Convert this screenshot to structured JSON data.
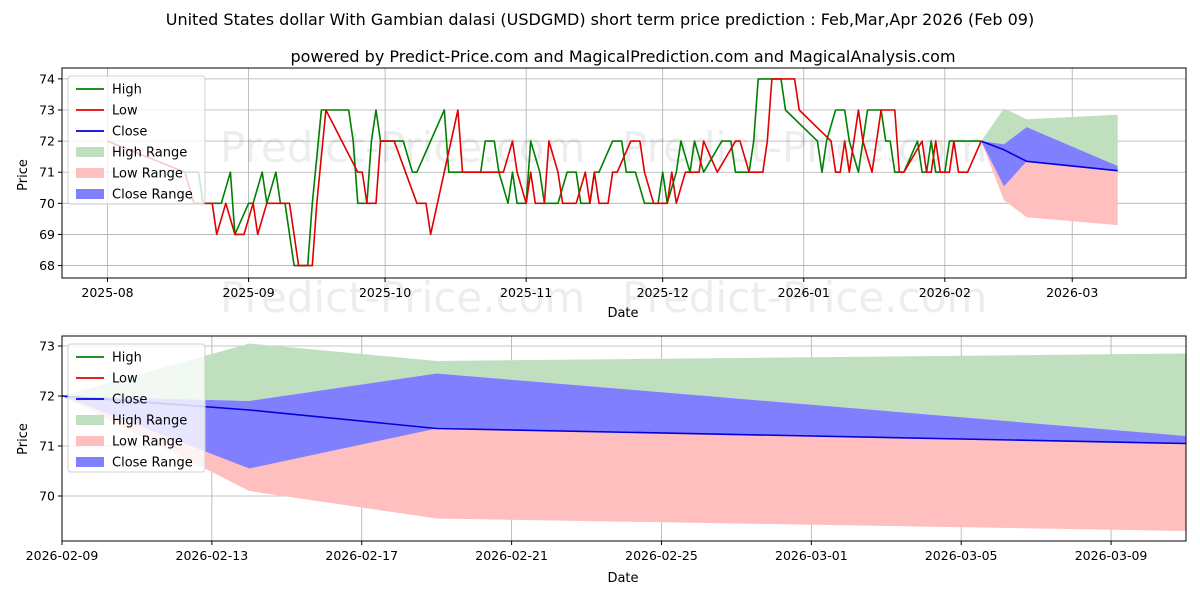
{
  "title": "United States dollar With Gambian dalasi (USDGMD) short term price prediction : Feb,Mar,Apr 2026 (Feb 09)",
  "subtitle": "powered by Predict-Price.com and MagicalPrediction.com and MagicalAnalysis.com",
  "watermark": "Predict-Price.com",
  "colors": {
    "high": "#008000",
    "low": "#e00000",
    "close": "#0000e0",
    "high_range": "#bfdfbf",
    "low_range": "#ffbfbf",
    "close_range": "#8080ff",
    "grid": "#b0b0b0"
  },
  "legend": {
    "items": [
      {
        "key": "high",
        "label": "High"
      },
      {
        "key": "low",
        "label": "Low"
      },
      {
        "key": "close",
        "label": "Close"
      },
      {
        "key": "high_range",
        "label": "High Range"
      },
      {
        "key": "low_range",
        "label": "Low Range"
      },
      {
        "key": "close_range",
        "label": "Close Range"
      }
    ]
  },
  "chart_data": [
    {
      "type": "line",
      "name": "history-and-forecast",
      "xlabel": "Date",
      "ylabel": "Price",
      "xlim": [
        "2025-07-22",
        "2026-03-26"
      ],
      "ylim": [
        67.6,
        74.35
      ],
      "yticks": [
        68,
        69,
        70,
        71,
        72,
        73,
        74
      ],
      "xticks": [
        {
          "date": "2025-08-01",
          "label": "2025-08"
        },
        {
          "date": "2025-09-01",
          "label": "2025-09"
        },
        {
          "date": "2025-10-01",
          "label": "2025-10"
        },
        {
          "date": "2025-11-01",
          "label": "2025-11"
        },
        {
          "date": "2025-12-01",
          "label": "2025-12"
        },
        {
          "date": "2026-01-01",
          "label": "2026-01"
        },
        {
          "date": "2026-02-01",
          "label": "2026-02"
        },
        {
          "date": "2026-03-01",
          "label": "2026-03"
        }
      ],
      "high_series": [
        [
          "2025-08-01",
          72
        ],
        [
          "2025-08-18",
          71
        ],
        [
          "2025-08-20",
          71
        ],
        [
          "2025-08-21",
          71
        ],
        [
          "2025-08-22",
          70
        ],
        [
          "2025-08-25",
          70
        ],
        [
          "2025-08-26",
          70
        ],
        [
          "2025-08-28",
          71
        ],
        [
          "2025-08-29",
          69
        ],
        [
          "2025-09-01",
          70
        ],
        [
          "2025-09-02",
          70
        ],
        [
          "2025-09-04",
          71
        ],
        [
          "2025-09-05",
          70
        ],
        [
          "2025-09-07",
          71
        ],
        [
          "2025-09-08",
          70
        ],
        [
          "2025-09-09",
          70
        ],
        [
          "2025-09-11",
          68
        ],
        [
          "2025-09-14",
          68
        ],
        [
          "2025-09-15",
          70
        ],
        [
          "2025-09-17",
          73
        ],
        [
          "2025-09-23",
          73
        ],
        [
          "2025-09-24",
          72
        ],
        [
          "2025-09-25",
          70
        ],
        [
          "2025-09-27",
          70
        ],
        [
          "2025-09-28",
          72
        ],
        [
          "2025-09-29",
          73
        ],
        [
          "2025-09-30",
          72
        ],
        [
          "2025-10-05",
          72
        ],
        [
          "2025-10-07",
          71
        ],
        [
          "2025-10-08",
          71
        ],
        [
          "2025-10-14",
          73
        ],
        [
          "2025-10-15",
          71
        ],
        [
          "2025-10-22",
          71
        ],
        [
          "2025-10-23",
          72
        ],
        [
          "2025-10-25",
          72
        ],
        [
          "2025-10-26",
          71
        ],
        [
          "2025-10-28",
          70
        ],
        [
          "2025-10-29",
          71
        ],
        [
          "2025-10-30",
          70
        ],
        [
          "2025-11-01",
          70
        ],
        [
          "2025-11-02",
          72
        ],
        [
          "2025-11-04",
          71
        ],
        [
          "2025-11-05",
          70
        ],
        [
          "2025-11-08",
          70
        ],
        [
          "2025-11-10",
          71
        ],
        [
          "2025-11-12",
          71
        ],
        [
          "2025-11-13",
          70
        ],
        [
          "2025-11-15",
          70
        ],
        [
          "2025-11-16",
          71
        ],
        [
          "2025-11-17",
          71
        ],
        [
          "2025-11-20",
          72
        ],
        [
          "2025-11-22",
          72
        ],
        [
          "2025-11-23",
          71
        ],
        [
          "2025-11-25",
          71
        ],
        [
          "2025-11-27",
          70
        ],
        [
          "2025-11-30",
          70
        ],
        [
          "2025-12-01",
          71
        ],
        [
          "2025-12-02",
          70
        ],
        [
          "2025-12-04",
          71
        ],
        [
          "2025-12-05",
          72
        ],
        [
          "2025-12-07",
          71
        ],
        [
          "2025-12-08",
          72
        ],
        [
          "2025-12-10",
          71
        ],
        [
          "2025-12-14",
          72
        ],
        [
          "2025-12-16",
          72
        ],
        [
          "2025-12-17",
          71
        ],
        [
          "2025-12-20",
          71
        ],
        [
          "2025-12-21",
          72
        ],
        [
          "2025-12-22",
          74
        ],
        [
          "2025-12-27",
          74
        ],
        [
          "2025-12-28",
          73
        ],
        [
          "2026-01-04",
          72
        ],
        [
          "2026-01-05",
          71
        ],
        [
          "2026-01-06",
          72
        ],
        [
          "2026-01-08",
          73
        ],
        [
          "2026-01-10",
          73
        ],
        [
          "2026-01-11",
          72
        ],
        [
          "2026-01-13",
          71
        ],
        [
          "2026-01-15",
          73
        ],
        [
          "2026-01-18",
          73
        ],
        [
          "2026-01-19",
          72
        ],
        [
          "2026-01-20",
          72
        ],
        [
          "2026-01-21",
          71
        ],
        [
          "2026-01-23",
          71
        ],
        [
          "2026-01-26",
          72
        ],
        [
          "2026-01-27",
          71
        ],
        [
          "2026-01-28",
          71
        ],
        [
          "2026-01-29",
          72
        ],
        [
          "2026-01-30",
          71
        ],
        [
          "2026-02-01",
          71
        ],
        [
          "2026-02-02",
          72
        ],
        [
          "2026-02-09",
          72
        ]
      ],
      "low_series": [
        [
          "2025-08-01",
          72
        ],
        [
          "2025-08-18",
          71
        ],
        [
          "2025-08-20",
          70
        ],
        [
          "2025-08-22",
          70
        ],
        [
          "2025-08-24",
          70
        ],
        [
          "2025-08-25",
          69
        ],
        [
          "2025-08-27",
          70
        ],
        [
          "2025-08-29",
          69
        ],
        [
          "2025-08-31",
          69
        ],
        [
          "2025-09-02",
          70
        ],
        [
          "2025-09-03",
          69
        ],
        [
          "2025-09-05",
          70
        ],
        [
          "2025-09-08",
          70
        ],
        [
          "2025-09-10",
          70
        ],
        [
          "2025-09-12",
          68
        ],
        [
          "2025-09-15",
          68
        ],
        [
          "2025-09-16",
          70
        ],
        [
          "2025-09-18",
          73
        ],
        [
          "2025-09-25",
          71
        ],
        [
          "2025-09-26",
          71
        ],
        [
          "2025-09-27",
          70
        ],
        [
          "2025-09-29",
          70
        ],
        [
          "2025-09-30",
          72
        ],
        [
          "2025-10-03",
          72
        ],
        [
          "2025-10-08",
          70
        ],
        [
          "2025-10-10",
          70
        ],
        [
          "2025-10-11",
          69
        ],
        [
          "2025-10-17",
          73
        ],
        [
          "2025-10-18",
          71
        ],
        [
          "2025-10-27",
          71
        ],
        [
          "2025-10-29",
          72
        ],
        [
          "2025-10-30",
          71
        ],
        [
          "2025-11-01",
          70
        ],
        [
          "2025-11-02",
          71
        ],
        [
          "2025-11-03",
          70
        ],
        [
          "2025-11-05",
          70
        ],
        [
          "2025-11-06",
          72
        ],
        [
          "2025-11-08",
          71
        ],
        [
          "2025-11-09",
          70
        ],
        [
          "2025-11-12",
          70
        ],
        [
          "2025-11-14",
          71
        ],
        [
          "2025-11-15",
          70
        ],
        [
          "2025-11-16",
          71
        ],
        [
          "2025-11-17",
          70
        ],
        [
          "2025-11-19",
          70
        ],
        [
          "2025-11-20",
          71
        ],
        [
          "2025-11-21",
          71
        ],
        [
          "2025-11-24",
          72
        ],
        [
          "2025-11-26",
          72
        ],
        [
          "2025-11-27",
          71
        ],
        [
          "2025-11-29",
          70
        ],
        [
          "2025-12-02",
          70
        ],
        [
          "2025-12-03",
          71
        ],
        [
          "2025-12-04",
          70
        ],
        [
          "2025-12-06",
          71
        ],
        [
          "2025-12-09",
          71
        ],
        [
          "2025-12-10",
          72
        ],
        [
          "2025-12-13",
          71
        ],
        [
          "2025-12-17",
          72
        ],
        [
          "2025-12-18",
          72
        ],
        [
          "2025-12-20",
          71
        ],
        [
          "2025-12-23",
          71
        ],
        [
          "2025-12-24",
          72
        ],
        [
          "2025-12-25",
          74
        ],
        [
          "2025-12-30",
          74
        ],
        [
          "2025-12-31",
          73
        ],
        [
          "2026-01-07",
          72
        ],
        [
          "2026-01-08",
          71
        ],
        [
          "2026-01-09",
          71
        ],
        [
          "2026-01-10",
          72
        ],
        [
          "2026-01-11",
          71
        ],
        [
          "2026-01-13",
          73
        ],
        [
          "2026-01-14",
          72
        ],
        [
          "2026-01-16",
          71
        ],
        [
          "2026-01-18",
          73
        ],
        [
          "2026-01-21",
          73
        ],
        [
          "2026-01-22",
          71
        ],
        [
          "2026-01-23",
          71
        ],
        [
          "2026-01-27",
          72
        ],
        [
          "2026-01-28",
          71
        ],
        [
          "2026-01-29",
          71
        ],
        [
          "2026-01-30",
          72
        ],
        [
          "2026-01-31",
          71
        ],
        [
          "2026-02-02",
          71
        ],
        [
          "2026-02-03",
          72
        ],
        [
          "2026-02-04",
          71
        ],
        [
          "2026-02-06",
          71
        ],
        [
          "2026-02-09",
          72
        ]
      ]
    },
    {
      "type": "area",
      "name": "forecast-detail",
      "xlabel": "Date",
      "ylabel": "Price",
      "xlim": [
        "2026-02-09",
        "2026-03-11"
      ],
      "ylim": [
        69.1,
        73.2
      ],
      "yticks": [
        70,
        71,
        72,
        73
      ],
      "xticks": [
        {
          "date": "2026-02-09",
          "label": "2026-02-09"
        },
        {
          "date": "2026-02-13",
          "label": "2026-02-13"
        },
        {
          "date": "2026-02-17",
          "label": "2026-02-17"
        },
        {
          "date": "2026-02-21",
          "label": "2026-02-21"
        },
        {
          "date": "2026-02-25",
          "label": "2026-02-25"
        },
        {
          "date": "2026-03-01",
          "label": "2026-03-01"
        },
        {
          "date": "2026-03-05",
          "label": "2026-03-05"
        },
        {
          "date": "2026-03-09",
          "label": "2026-03-09"
        }
      ],
      "forecast_dates": [
        "2026-02-09",
        "2026-02-14",
        "2026-02-19",
        "2026-03-11"
      ],
      "high_range_upper": [
        72.0,
        73.05,
        72.7,
        72.85
      ],
      "high_range_lower": [
        72.0,
        71.9,
        72.45,
        71.2
      ],
      "low_range_upper": [
        72.0,
        71.0,
        71.35,
        71.05
      ],
      "low_range_lower": [
        72.0,
        70.1,
        69.55,
        69.3
      ],
      "close_range_upper": [
        72.0,
        71.9,
        72.45,
        71.2
      ],
      "close_range_lower": [
        72.0,
        70.55,
        71.35,
        71.05
      ],
      "close_values": [
        72.0,
        71.72,
        71.35,
        71.05
      ]
    }
  ]
}
